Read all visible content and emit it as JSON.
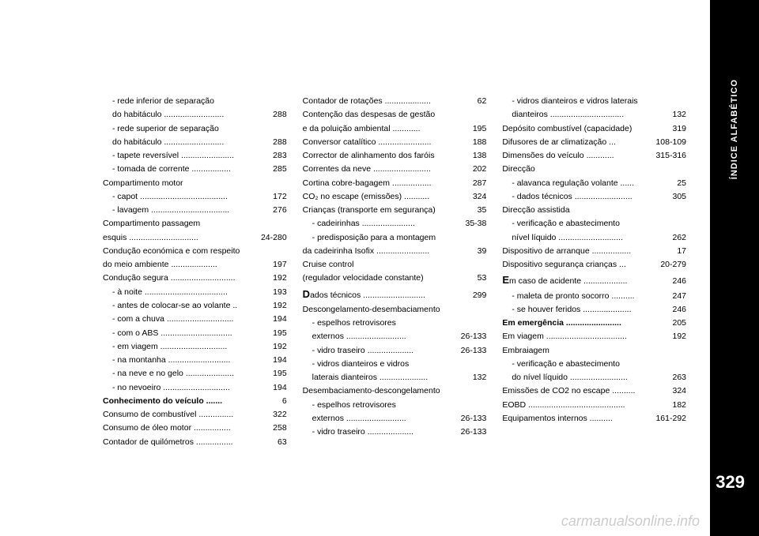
{
  "sidebar": {
    "label": "ÍNDICE ALFABÉTICO"
  },
  "pageNumber": "329",
  "watermark": "carmanualsonline.info",
  "columns": {
    "col1": [
      {
        "text": "- rede inferior de separação",
        "page": "",
        "sub": true
      },
      {
        "text": "  do habitáculo ..........................",
        "page": "288",
        "sub": true
      },
      {
        "text": "- rede superior de separação",
        "page": "",
        "sub": true
      },
      {
        "text": "  do habitáculo ..........................",
        "page": "288",
        "sub": true
      },
      {
        "text": "- tapete reversível .......................",
        "page": "283",
        "sub": true
      },
      {
        "text": "- tomada de corrente .................",
        "page": "285",
        "sub": true
      },
      {
        "text": "Compartimento motor",
        "page": ""
      },
      {
        "text": "- capot ......................................",
        "page": "172",
        "sub": true
      },
      {
        "text": "- lavagem ..................................",
        "page": "276",
        "sub": true
      },
      {
        "text": "Compartimento passagem",
        "page": ""
      },
      {
        "text": "  esquis ..............................",
        "page": "24-280"
      },
      {
        "text": "Condução económica e com respeito",
        "page": ""
      },
      {
        "text": "  do meio ambiente ....................",
        "page": "197"
      },
      {
        "text": "Condução segura ............................",
        "page": "192"
      },
      {
        "text": "- à noite ....................................",
        "page": "193",
        "sub": true
      },
      {
        "text": "- antes de colocar-se ao volante ..",
        "page": "192",
        "sub": true
      },
      {
        "text": "- com a chuva .............................",
        "page": "194",
        "sub": true
      },
      {
        "text": "- com o ABS ...............................",
        "page": "195",
        "sub": true
      },
      {
        "text": "- em viagem .............................",
        "page": "192",
        "sub": true
      },
      {
        "text": "- na montanha ...........................",
        "page": "194",
        "sub": true
      },
      {
        "text": "- na neve e no gelo .....................",
        "page": "195",
        "sub": true
      },
      {
        "text": "- no nevoeiro .............................",
        "page": "194",
        "sub": true
      },
      {
        "text": "Conhecimento do veículo .......",
        "page": "6",
        "bold": true
      },
      {
        "text": "Consumo de combustível ...............",
        "page": "322"
      },
      {
        "text": "Consumo de óleo motor ................",
        "page": "258"
      },
      {
        "text": "Contador de quilómetros ................",
        "page": "63"
      }
    ],
    "col2": [
      {
        "text": "Contador de rotações ....................",
        "page": "62"
      },
      {
        "text": "Contenção das despesas de gestão",
        "page": ""
      },
      {
        "text": "  e da poluição ambiental ............",
        "page": "195"
      },
      {
        "text": "Conversor catalítico .......................",
        "page": "188"
      },
      {
        "text": "Corrector de alinhamento dos faróis",
        "page": "138"
      },
      {
        "text": "Correntes da neve .........................",
        "page": "202"
      },
      {
        "text": "Cortina cobre-bagagem .................",
        "page": "287"
      },
      {
        "text": "CO₂ no escape (emissões) ...........",
        "page": "324"
      },
      {
        "text": "Crianças (transporte em segurança)",
        "page": "35"
      },
      {
        "text": "- cadeirinhas .......................",
        "page": "35-38",
        "sub": true
      },
      {
        "text": "- predisposição para a montagem",
        "page": "",
        "sub": true
      },
      {
        "text": "da cadeirinha Isofix .......................",
        "page": "39"
      },
      {
        "text": "Cruise control",
        "page": ""
      },
      {
        "text": "  (regulador velocidade constante)",
        "page": "53"
      },
      {
        "text": " ",
        "page": ""
      },
      {
        "text": "Dados técnicos ...........................",
        "page": "299",
        "letter": "D"
      },
      {
        "text": "Descongelamento-desembaciamento",
        "page": ""
      },
      {
        "text": "- espelhos retrovisores",
        "page": "",
        "sub": true
      },
      {
        "text": "  externos ..........................",
        "page": "26-133",
        "sub": true
      },
      {
        "text": "- vidro traseiro ....................",
        "page": "26-133",
        "sub": true
      },
      {
        "text": "- vidros dianteiros e vidros",
        "page": "",
        "sub": true
      },
      {
        "text": "  laterais dianteiros .....................",
        "page": "132",
        "sub": true
      },
      {
        "text": "Desembaciamento-descongelamento",
        "page": ""
      },
      {
        "text": "- espelhos retrovisores",
        "page": "",
        "sub": true
      },
      {
        "text": "  externos ..........................",
        "page": "26-133",
        "sub": true
      },
      {
        "text": "- vidro traseiro ....................",
        "page": "26-133",
        "sub": true
      }
    ],
    "col3": [
      {
        "text": "- vidros dianteiros e vidros laterais",
        "page": "",
        "sub": true
      },
      {
        "text": "  dianteiros ................................",
        "page": "132",
        "sub": true
      },
      {
        "text": "Depósito combustível (capacidade)",
        "page": "319"
      },
      {
        "text": "Difusores de ar climatização ...",
        "page": "108-109"
      },
      {
        "text": "Dimensões do veículo ............",
        "page": "315-316"
      },
      {
        "text": "Direcção",
        "page": ""
      },
      {
        "text": "- alavanca regulação volante ......",
        "page": "25",
        "sub": true
      },
      {
        "text": "- dados técnicos .........................",
        "page": "305",
        "sub": true
      },
      {
        "text": "Direcção assistida",
        "page": ""
      },
      {
        "text": "- verificação e abastecimento",
        "page": "",
        "sub": true
      },
      {
        "text": "  nível líquido ............................",
        "page": "262",
        "sub": true
      },
      {
        "text": "Dispositivo de arranque .................",
        "page": "17"
      },
      {
        "text": "Dispositivo segurança crianças ...",
        "page": "20-279"
      },
      {
        "text": " ",
        "page": ""
      },
      {
        "text": "Em caso de acidente ...................",
        "page": "246",
        "letter": "E"
      },
      {
        "text": "- maleta de pronto socorro ..........",
        "page": "247",
        "sub": true
      },
      {
        "text": "- se houver feridos .....................",
        "page": "246",
        "sub": true
      },
      {
        "text": "Em emergência ........................",
        "page": "205",
        "bold": true
      },
      {
        "text": "Em viagem ...................................",
        "page": "192"
      },
      {
        "text": "Embraiagem",
        "page": ""
      },
      {
        "text": "- verificação e abastecimento",
        "page": "",
        "sub": true
      },
      {
        "text": "  do nível líquido .........................",
        "page": "263",
        "sub": true
      },
      {
        "text": "Emissões de CO2 no escape ..........",
        "page": "324"
      },
      {
        "text": "EOBD ..........................................",
        "page": "182"
      },
      {
        "text": "Equipamentos internos ..........",
        "page": "161-292"
      }
    ]
  }
}
